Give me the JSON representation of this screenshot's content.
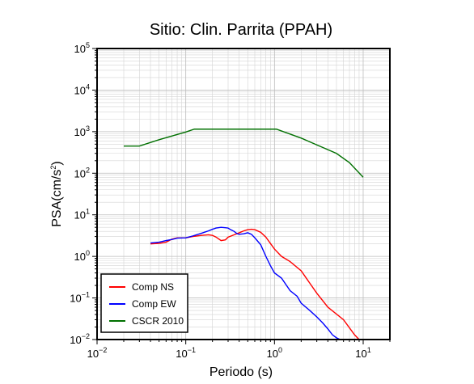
{
  "chart_data": {
    "type": "line",
    "title": "Sitio: Clin. Parrita (PPAH)",
    "xlabel": "Periodo (s)",
    "ylabel_main": "PSA(cm/s",
    "ylabel_sup": "2",
    "ylabel_tail": ")",
    "x_scale": "log",
    "y_scale": "log",
    "xlim": [
      0.01,
      20
    ],
    "ylim": [
      0.01,
      100000
    ],
    "grid": true,
    "legend_placement": "bottom-left",
    "x_ticks": [
      {
        "base": "10",
        "exp": "−2",
        "value": 0.01
      },
      {
        "base": "10",
        "exp": "−1",
        "value": 0.1
      },
      {
        "base": "10",
        "exp": "0",
        "value": 1
      },
      {
        "base": "10",
        "exp": "1",
        "value": 10
      }
    ],
    "y_ticks": [
      {
        "base": "10",
        "exp": "−2",
        "value": 0.01
      },
      {
        "base": "10",
        "exp": "−1",
        "value": 0.1
      },
      {
        "base": "10",
        "exp": "0",
        "value": 1
      },
      {
        "base": "10",
        "exp": "1",
        "value": 10
      },
      {
        "base": "10",
        "exp": "2",
        "value": 100
      },
      {
        "base": "10",
        "exp": "3",
        "value": 1000
      },
      {
        "base": "10",
        "exp": "4",
        "value": 10000
      },
      {
        "base": "10",
        "exp": "5",
        "value": 100000
      }
    ],
    "series": [
      {
        "name": "Comp NS",
        "color": "#ff0000",
        "points": [
          [
            0.04,
            2.0
          ],
          [
            0.05,
            2.05
          ],
          [
            0.06,
            2.2
          ],
          [
            0.07,
            2.6
          ],
          [
            0.08,
            2.8
          ],
          [
            0.1,
            2.8
          ],
          [
            0.12,
            3.0
          ],
          [
            0.15,
            3.2
          ],
          [
            0.18,
            3.3
          ],
          [
            0.2,
            3.2
          ],
          [
            0.22,
            2.9
          ],
          [
            0.25,
            2.4
          ],
          [
            0.28,
            2.5
          ],
          [
            0.3,
            2.9
          ],
          [
            0.35,
            3.3
          ],
          [
            0.4,
            3.7
          ],
          [
            0.45,
            4.1
          ],
          [
            0.5,
            4.4
          ],
          [
            0.55,
            4.5
          ],
          [
            0.6,
            4.4
          ],
          [
            0.7,
            3.8
          ],
          [
            0.8,
            2.9
          ],
          [
            1.0,
            1.5
          ],
          [
            1.2,
            1.0
          ],
          [
            1.5,
            0.75
          ],
          [
            2.0,
            0.45
          ],
          [
            3.0,
            0.13
          ],
          [
            4.0,
            0.06
          ],
          [
            6.0,
            0.03
          ],
          [
            8.0,
            0.013
          ],
          [
            9.0,
            0.01
          ]
        ]
      },
      {
        "name": "Comp EW",
        "color": "#0000ff",
        "points": [
          [
            0.04,
            2.1
          ],
          [
            0.05,
            2.2
          ],
          [
            0.06,
            2.4
          ],
          [
            0.07,
            2.55
          ],
          [
            0.08,
            2.75
          ],
          [
            0.1,
            2.8
          ],
          [
            0.12,
            3.1
          ],
          [
            0.15,
            3.6
          ],
          [
            0.18,
            4.1
          ],
          [
            0.2,
            4.5
          ],
          [
            0.22,
            4.8
          ],
          [
            0.25,
            5.0
          ],
          [
            0.28,
            4.9
          ],
          [
            0.3,
            4.8
          ],
          [
            0.32,
            4.4
          ],
          [
            0.35,
            4.0
          ],
          [
            0.38,
            3.5
          ],
          [
            0.4,
            3.4
          ],
          [
            0.45,
            3.5
          ],
          [
            0.5,
            3.7
          ],
          [
            0.55,
            3.4
          ],
          [
            0.6,
            2.8
          ],
          [
            0.7,
            1.9
          ],
          [
            0.8,
            1.0
          ],
          [
            0.9,
            0.6
          ],
          [
            1.0,
            0.4
          ],
          [
            1.2,
            0.3
          ],
          [
            1.5,
            0.15
          ],
          [
            1.8,
            0.11
          ],
          [
            2.0,
            0.075
          ],
          [
            2.5,
            0.05
          ],
          [
            3.0,
            0.035
          ],
          [
            3.5,
            0.025
          ],
          [
            4.0,
            0.018
          ],
          [
            4.5,
            0.013
          ],
          [
            5.0,
            0.011
          ],
          [
            5.5,
            0.01
          ]
        ]
      },
      {
        "name": "CSCR 2010",
        "color": "#007000",
        "points": [
          [
            0.02,
            450
          ],
          [
            0.03,
            450
          ],
          [
            0.05,
            640
          ],
          [
            0.1,
            980
          ],
          [
            0.125,
            1150
          ],
          [
            0.5,
            1150
          ],
          [
            1.0,
            1150
          ],
          [
            1.05,
            1150
          ],
          [
            2.0,
            700
          ],
          [
            5.0,
            300
          ],
          [
            7.0,
            180
          ],
          [
            10.0,
            80
          ]
        ]
      }
    ]
  }
}
